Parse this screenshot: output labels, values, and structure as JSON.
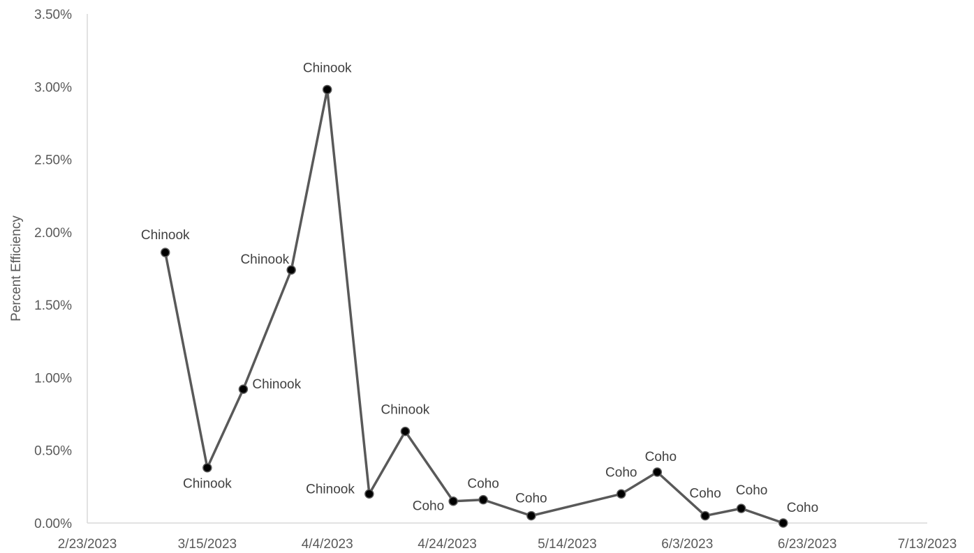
{
  "chart_data": {
    "type": "line",
    "title": "",
    "xlabel": "",
    "ylabel": "Percent Efficiency",
    "x_ticks": [
      "2/23/2023",
      "3/15/2023",
      "4/4/2023",
      "4/24/2023",
      "5/14/2023",
      "6/3/2023",
      "6/23/2023",
      "7/13/2023"
    ],
    "y_ticks": [
      "0.00%",
      "0.50%",
      "1.00%",
      "1.50%",
      "2.00%",
      "2.50%",
      "3.00%",
      "3.50%"
    ],
    "xlim": [
      "2023-02-23",
      "2023-07-13"
    ],
    "ylim": [
      0,
      3.5
    ],
    "y_unit": "%",
    "grid": false,
    "series": [
      {
        "points": [
          {
            "x": "2023-03-08",
            "y": 1.86,
            "label": "Chinook"
          },
          {
            "x": "2023-03-15",
            "y": 0.38,
            "label": "Chinook"
          },
          {
            "x": "2023-03-21",
            "y": 0.92,
            "label": "Chinook"
          },
          {
            "x": "2023-03-29",
            "y": 1.74,
            "label": "Chinook"
          },
          {
            "x": "2023-04-04",
            "y": 2.98,
            "label": "Chinook"
          },
          {
            "x": "2023-04-11",
            "y": 0.2,
            "label": "Chinook"
          },
          {
            "x": "2023-04-17",
            "y": 0.63,
            "label": "Chinook"
          },
          {
            "x": "2023-04-25",
            "y": 0.15,
            "label": "Coho"
          },
          {
            "x": "2023-04-30",
            "y": 0.16,
            "label": "Coho"
          },
          {
            "x": "2023-05-08",
            "y": 0.05,
            "label": "Coho"
          },
          {
            "x": "2023-05-23",
            "y": 0.2,
            "label": "Coho"
          },
          {
            "x": "2023-05-29",
            "y": 0.35,
            "label": "Coho"
          },
          {
            "x": "2023-06-06",
            "y": 0.05,
            "label": "Coho"
          },
          {
            "x": "2023-06-12",
            "y": 0.1,
            "label": "Coho"
          },
          {
            "x": "2023-06-19",
            "y": 0.0,
            "label": "Coho"
          }
        ]
      }
    ]
  },
  "colors": {
    "line": "#595959",
    "marker": "#000000",
    "axis": "#d9d9d9",
    "text": "#595959",
    "label": "#404040"
  }
}
